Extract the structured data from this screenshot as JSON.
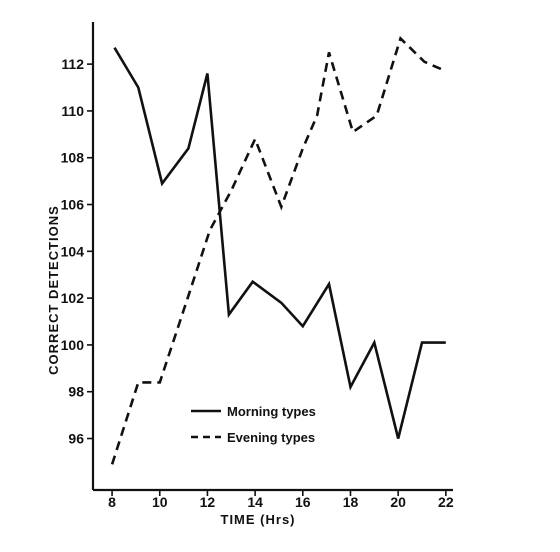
{
  "chart_data": {
    "type": "line",
    "xlabel": "TIME (Hrs)",
    "ylabel": "CORRECT DETECTIONS",
    "xlim": [
      7.2,
      22.3
    ],
    "ylim": [
      93.8,
      113.8
    ],
    "x_ticks": [
      8,
      10,
      12,
      14,
      16,
      18,
      20,
      22
    ],
    "y_ticks": [
      96,
      98,
      100,
      102,
      104,
      106,
      108,
      110,
      112
    ],
    "legend_position": "lower-center",
    "grid": false,
    "series": [
      {
        "name": "Morning types",
        "style": "solid",
        "color": "#111111",
        "points": [
          [
            8.1,
            112.7
          ],
          [
            9.1,
            111.0
          ],
          [
            10.1,
            106.9
          ],
          [
            11.2,
            108.4
          ],
          [
            12.0,
            111.6
          ],
          [
            12.9,
            101.3
          ],
          [
            13.9,
            102.7
          ],
          [
            15.1,
            101.8
          ],
          [
            16.0,
            100.8
          ],
          [
            17.1,
            102.6
          ],
          [
            18.0,
            98.2
          ],
          [
            19.0,
            100.1
          ],
          [
            20.0,
            96.0
          ],
          [
            21.0,
            100.1
          ],
          [
            22.0,
            100.1
          ]
        ]
      },
      {
        "name": "Evening types",
        "style": "dashed",
        "color": "#111111",
        "points": [
          [
            8.0,
            94.9
          ],
          [
            9.1,
            98.4
          ],
          [
            10.0,
            98.4
          ],
          [
            11.2,
            102.1
          ],
          [
            12.1,
            104.9
          ],
          [
            13.0,
            106.6
          ],
          [
            14.0,
            108.8
          ],
          [
            15.1,
            105.9
          ],
          [
            16.0,
            108.4
          ],
          [
            16.6,
            109.8
          ],
          [
            17.1,
            112.5
          ],
          [
            18.1,
            109.1
          ],
          [
            19.1,
            109.8
          ],
          [
            20.1,
            113.1
          ],
          [
            21.1,
            112.1
          ],
          [
            22.0,
            111.7
          ]
        ]
      }
    ]
  }
}
